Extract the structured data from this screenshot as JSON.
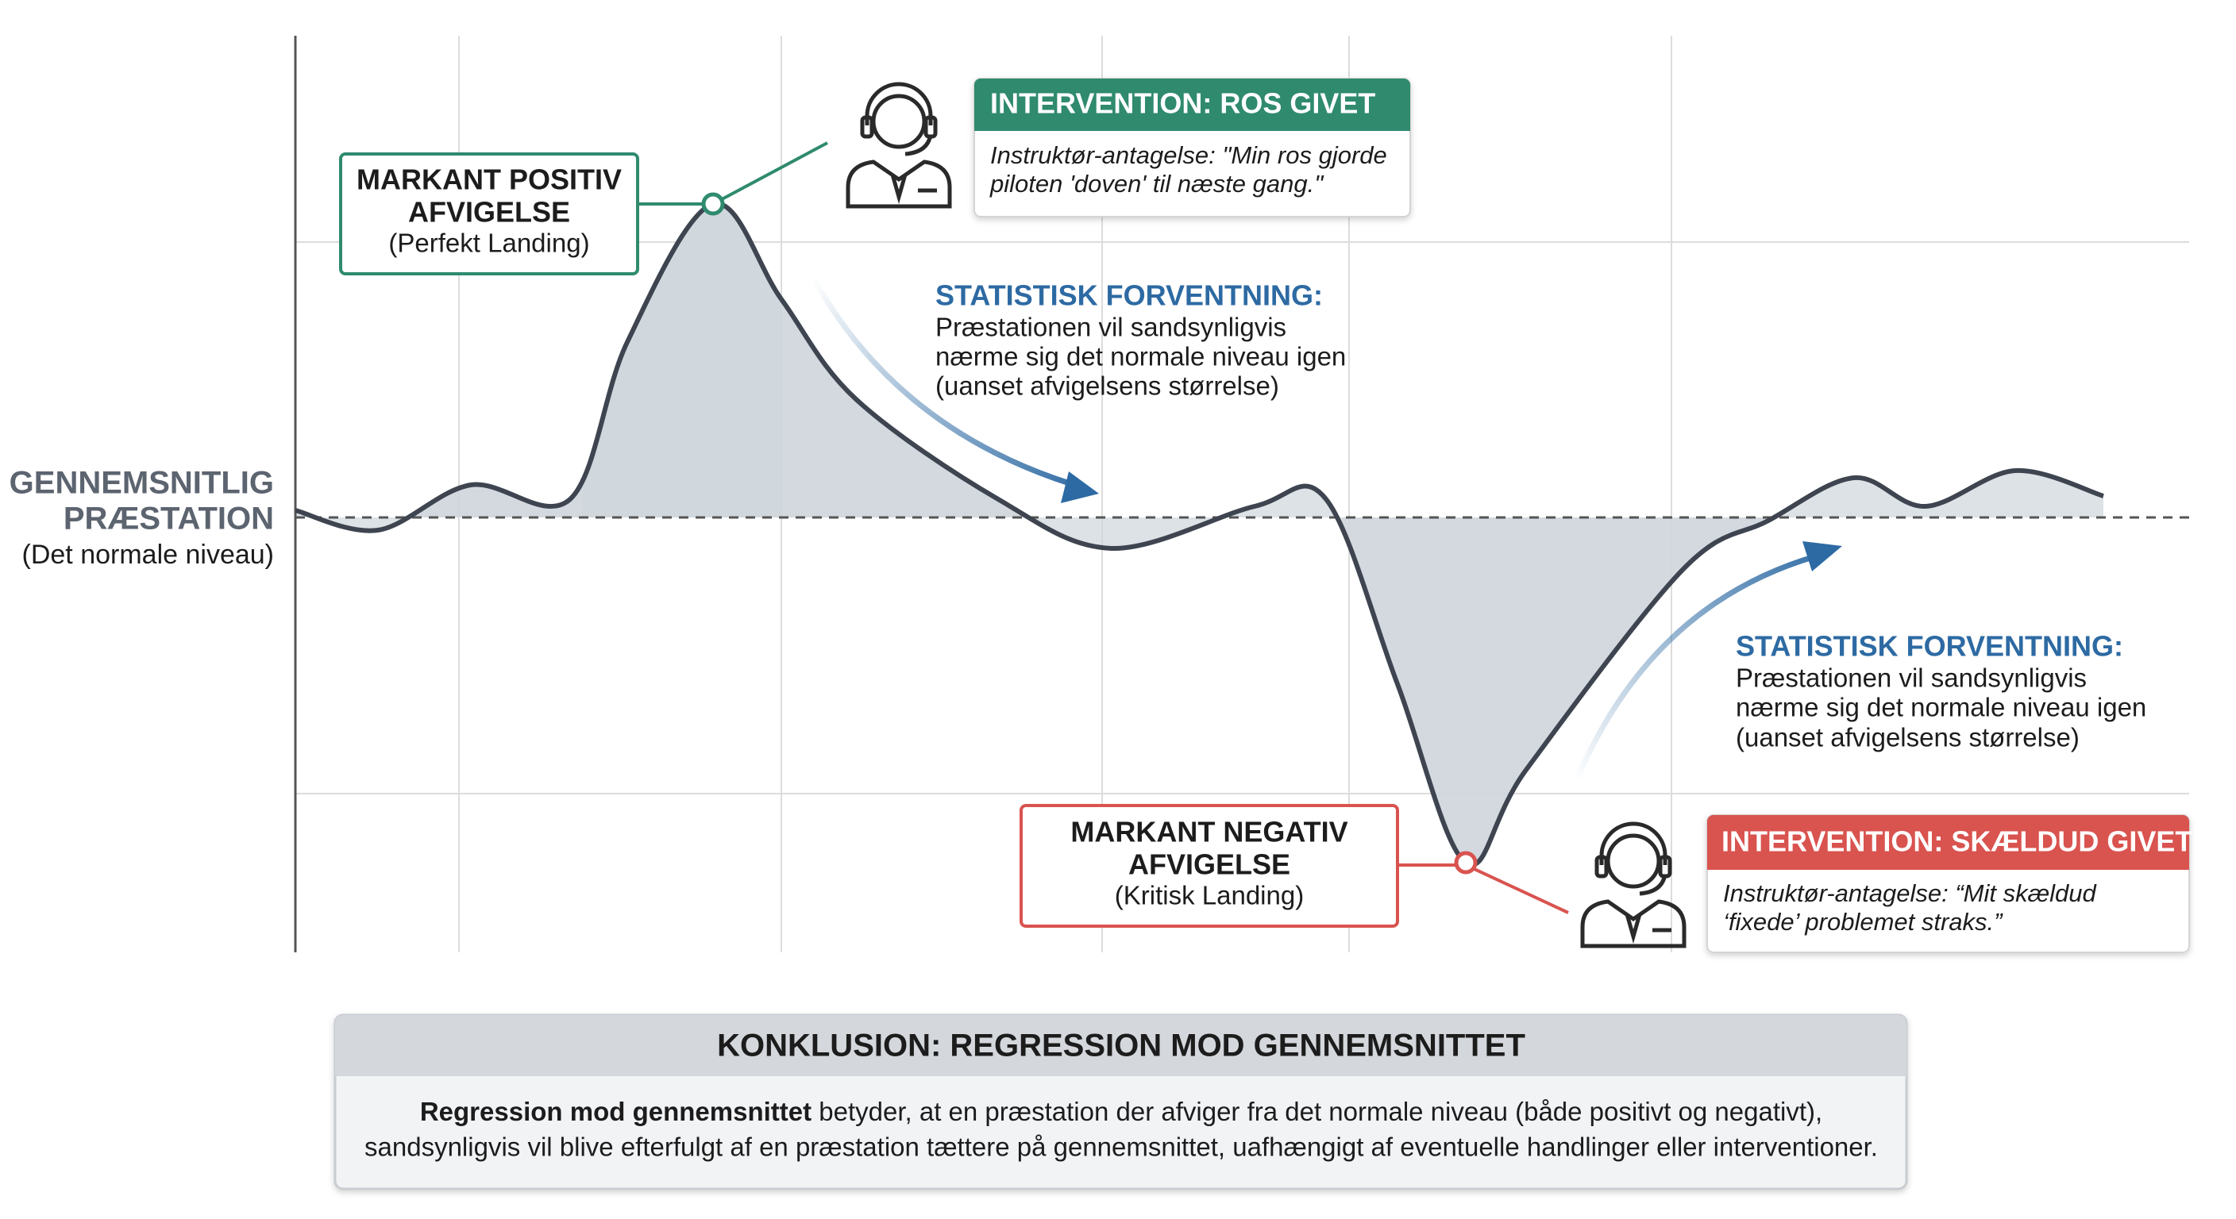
{
  "axis_label": {
    "lines": [
      "GENNEMSNITLIG",
      "PRÆSTATION"
    ],
    "note": "(Det normale niveau)"
  },
  "positive": {
    "title": [
      "MARKANT POSITIV",
      "AFVIGELSE"
    ],
    "note": "(Perfekt Landing)"
  },
  "intervention_praise": {
    "header": "INTERVENTION: ROS GIVET",
    "text": [
      "Instruktør-antagelse: \"Min ros gjorde",
      "piloten 'doven' til næste gang.\""
    ]
  },
  "expectation_1": {
    "title": "STATISTISK FORVENTNING:",
    "text": [
      "Præstationen vil sandsynligvis",
      "nærme sig det normale niveau igen",
      "(uanset afvigelsens størrelse)"
    ]
  },
  "negative": {
    "title": [
      "MARKANT NEGATIV",
      "AFVIGELSE"
    ],
    "note": "(Kritisk Landing)"
  },
  "intervention_scold": {
    "header": "INTERVENTION: SKÆLDUD GIVET",
    "text": [
      "Instruktør-antagelse: “Mit skældud",
      "‘fixede’ problemet straks.”"
    ]
  },
  "expectation_2": {
    "title": "STATISTISK FORVENTNING:",
    "text": [
      "Præstationen vil sandsynligvis",
      "nærme sig det normale niveau igen",
      "(uanset afvigelsens størrelse)"
    ]
  },
  "conclusion": {
    "title": "KONKLUSION: REGRESSION MOD GENNEMSNITTET",
    "lead": "Regression mod gennemsnittet",
    "text": [
      " betyder, at en præstation der afviger fra det normale niveau (både positivt og negativt),",
      "sandsynligvis vil blive efterfulgt af en præstation tættere på gennemsnittet, uafhængigt af eventuelle handlinger eller interventioner."
    ]
  }
}
